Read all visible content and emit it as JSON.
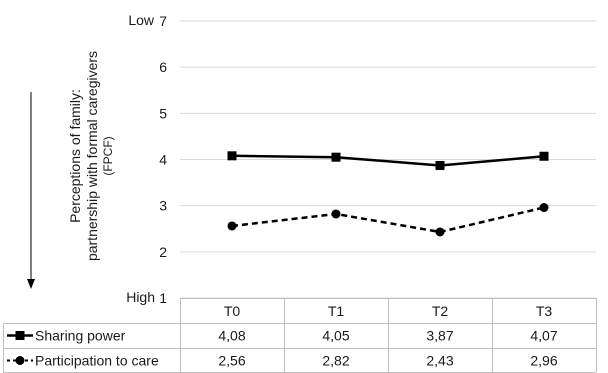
{
  "chart_data": {
    "type": "line",
    "categories": [
      "T0",
      "T1",
      "T2",
      "T3"
    ],
    "series": [
      {
        "name": "Sharing power",
        "values": [
          4.08,
          4.05,
          3.87,
          4.07
        ],
        "labels": [
          "4,08",
          "4,05",
          "3,87",
          "4,07"
        ],
        "style": "solid",
        "marker": "square",
        "color": "#000000"
      },
      {
        "name": "Participation to care",
        "values": [
          2.56,
          2.82,
          2.43,
          2.96
        ],
        "labels": [
          "2,56",
          "2,82",
          "2,43",
          "2,96"
        ],
        "style": "dashed",
        "marker": "circle",
        "color": "#000000"
      }
    ],
    "ylabel": [
      "Perceptions of family:",
      "partnership with formal caregivers",
      "(FPCF)"
    ],
    "ylim": [
      1,
      7
    ],
    "yticks": [
      "1",
      "2",
      "3",
      "4",
      "5",
      "6",
      "7"
    ],
    "y_top_label": "Low",
    "y_bottom_label": "High",
    "grid": "horizontal",
    "legend": "data-table"
  }
}
